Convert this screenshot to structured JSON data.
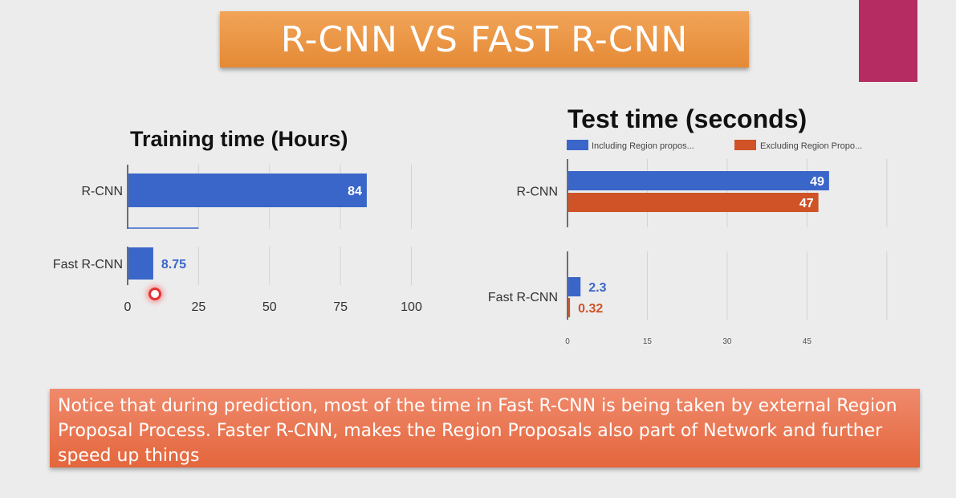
{
  "slide": {
    "title": "R-CNN VS FAST R-CNN",
    "note": "Notice that during prediction, most of the time in Fast R-CNN is being taken by external Region Proposal Process. Faster R-CNN, makes the Region Proposals also part of Network and further speed up things",
    "accent_color": "#b42c62",
    "banner_color": "#e8913c",
    "note_color": "#e8714a"
  },
  "chart_data": [
    {
      "type": "bar",
      "orientation": "horizontal",
      "title": "Training time (Hours)",
      "categories": [
        "R-CNN",
        "Fast R-CNN"
      ],
      "series": [
        {
          "color": "#3a66c9",
          "values": [
            84,
            8.75
          ],
          "labels": [
            "84",
            "8.75"
          ]
        }
      ],
      "xlim": [
        0,
        100
      ],
      "xticks": [
        "0",
        "25",
        "50",
        "75",
        "100"
      ],
      "grid": true,
      "legend": "none"
    },
    {
      "type": "bar",
      "orientation": "horizontal",
      "title": "Test time (seconds)",
      "categories": [
        "R-CNN",
        "Fast R-CNN"
      ],
      "series": [
        {
          "name": "Including Region propos...",
          "color": "#3a66c9",
          "values": [
            49,
            2.3
          ],
          "labels": [
            "49",
            "2.3"
          ]
        },
        {
          "name": "Excluding Region Propo...",
          "color": "#cf5326",
          "values": [
            47,
            0.32
          ],
          "labels": [
            "47",
            "0.32"
          ]
        }
      ],
      "xlim": [
        0,
        60
      ],
      "xticks": [
        "0",
        "15",
        "30",
        "45"
      ],
      "grid": true,
      "legend": "top"
    }
  ]
}
